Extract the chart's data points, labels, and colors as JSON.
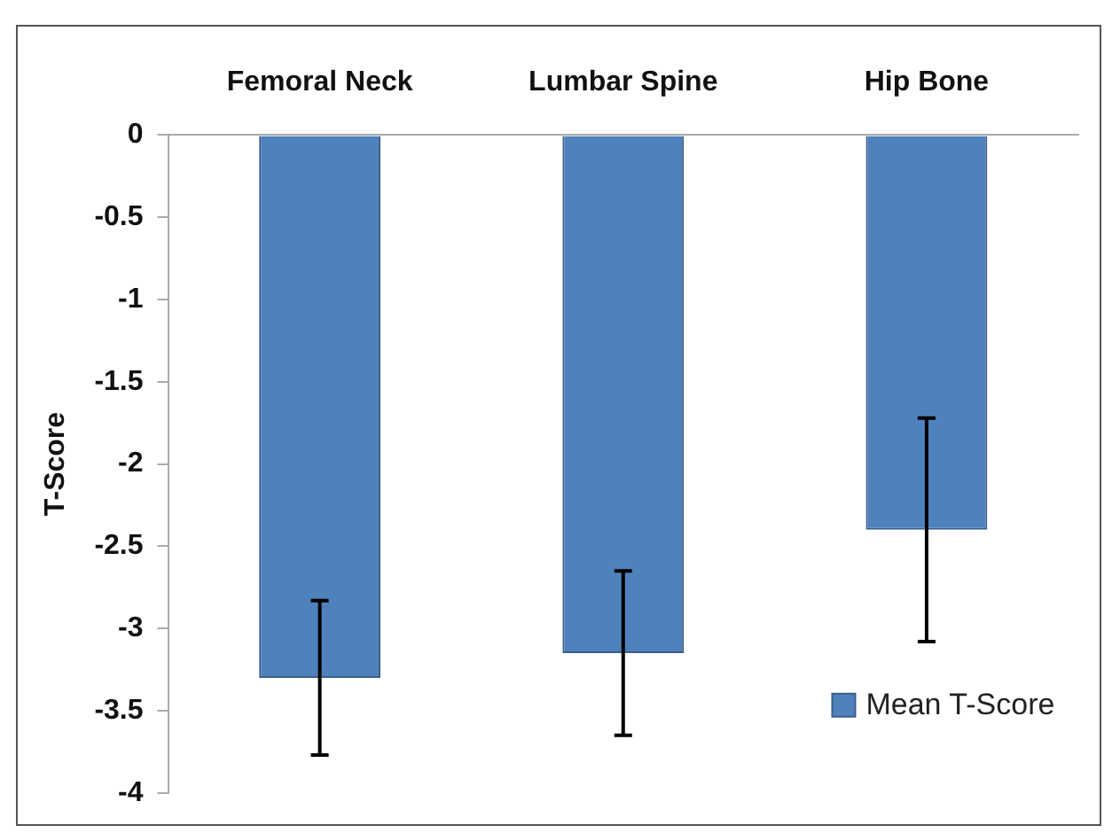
{
  "chart_data": {
    "type": "bar",
    "ylabel": "T-Score",
    "categories": [
      "Femoral Neck",
      "Lumbar Spine",
      "Hip Bone"
    ],
    "series": [
      {
        "name": "Mean T-Score",
        "color": "#4f81bd",
        "values": [
          -3.3,
          -3.15,
          -2.4
        ],
        "errors": [
          0.47,
          0.5,
          0.68
        ]
      }
    ],
    "ylim": [
      -4,
      0
    ],
    "yticks": [
      0,
      -0.5,
      -1,
      -1.5,
      -2,
      -2.5,
      -3,
      -3.5,
      -4
    ],
    "grid": false,
    "legend": "bottom right"
  }
}
